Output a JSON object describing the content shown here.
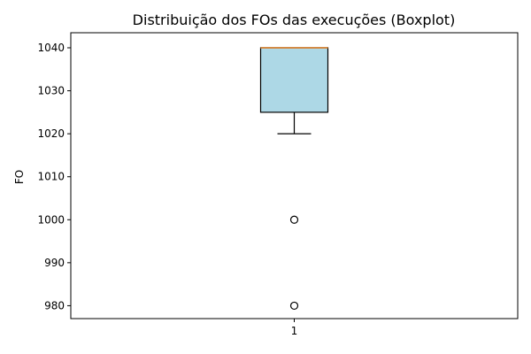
{
  "chart_data": {
    "type": "boxplot",
    "title": "Distribuição dos FOs das execuções (Boxplot)",
    "xlabel": "",
    "ylabel": "FO",
    "ylim": [
      977,
      1043.5
    ],
    "yticks": [
      980,
      990,
      1000,
      1010,
      1020,
      1030,
      1040
    ],
    "ytick_labels": [
      "980",
      "990",
      "1000",
      "1010",
      "1020",
      "1030",
      "1040"
    ],
    "categories": [
      "1"
    ],
    "boxes": [
      {
        "category": "1",
        "q1": 1025,
        "median": 1040,
        "q3": 1040,
        "whisker_low": 1020,
        "whisker_high": 1040,
        "outliers": [
          1000,
          980
        ]
      }
    ],
    "grid": false,
    "colors": {
      "box_fill": "#add8e6",
      "median": "#d38b46",
      "stroke": "#000000"
    }
  }
}
